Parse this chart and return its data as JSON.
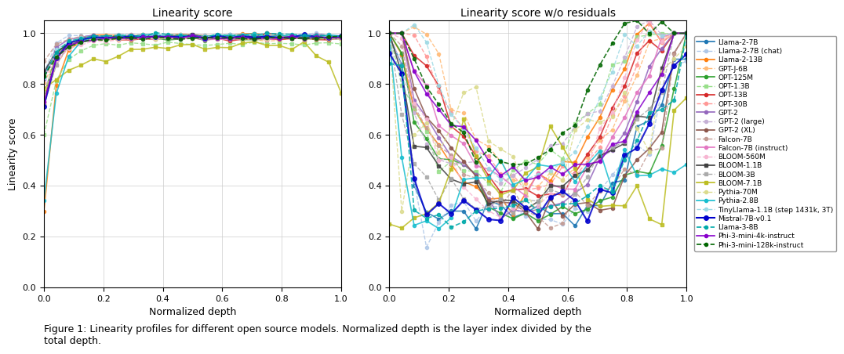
{
  "models": [
    {
      "name": "Llama-2-7B",
      "color": "#1f77b4",
      "linestyle": "-",
      "marker": "o",
      "markersize": 3,
      "linewidth": 1.2
    },
    {
      "name": "Llama-2-7B (chat)",
      "color": "#aec7e8",
      "linestyle": "--",
      "marker": "o",
      "markersize": 3,
      "linewidth": 1.0
    },
    {
      "name": "Llama-2-13B",
      "color": "#ff7f0e",
      "linestyle": "-",
      "marker": "o",
      "markersize": 3,
      "linewidth": 1.2
    },
    {
      "name": "GPT-J-6B",
      "color": "#ffbb78",
      "linestyle": "--",
      "marker": "o",
      "markersize": 3,
      "linewidth": 1.0
    },
    {
      "name": "OPT-125M",
      "color": "#2ca02c",
      "linestyle": "-",
      "marker": "o",
      "markersize": 3,
      "linewidth": 1.2
    },
    {
      "name": "OPT-1.3B",
      "color": "#98df8a",
      "linestyle": "--",
      "marker": "s",
      "markersize": 3,
      "linewidth": 1.0
    },
    {
      "name": "OPT-13B",
      "color": "#d62728",
      "linestyle": "-",
      "marker": "o",
      "markersize": 3,
      "linewidth": 1.2
    },
    {
      "name": "OPT-30B",
      "color": "#ff9896",
      "linestyle": "--",
      "marker": "o",
      "markersize": 3,
      "linewidth": 1.0
    },
    {
      "name": "GPT-2",
      "color": "#9467bd",
      "linestyle": "-",
      "marker": "o",
      "markersize": 3,
      "linewidth": 1.2
    },
    {
      "name": "GPT-2 (large)",
      "color": "#c5b0d5",
      "linestyle": "--",
      "marker": "o",
      "markersize": 3,
      "linewidth": 1.0
    },
    {
      "name": "GPT-2 (XL)",
      "color": "#8c564b",
      "linestyle": "-",
      "marker": "o",
      "markersize": 3,
      "linewidth": 1.2
    },
    {
      "name": "Falcon-7B",
      "color": "#c49c94",
      "linestyle": "--",
      "marker": "o",
      "markersize": 3,
      "linewidth": 1.0
    },
    {
      "name": "Falcon-7B (instruct)",
      "color": "#e377c2",
      "linestyle": "-",
      "marker": "o",
      "markersize": 3,
      "linewidth": 1.2
    },
    {
      "name": "BLOOM-560M",
      "color": "#f7b6d2",
      "linestyle": "--",
      "marker": "o",
      "markersize": 3,
      "linewidth": 1.0
    },
    {
      "name": "BLOOM-1.1B",
      "color": "#404040",
      "linestyle": "-",
      "marker": "s",
      "markersize": 3,
      "linewidth": 1.2
    },
    {
      "name": "BLOOM-3B",
      "color": "#aaaaaa",
      "linestyle": "--",
      "marker": "s",
      "markersize": 3,
      "linewidth": 1.0
    },
    {
      "name": "BLOOM-7.1B",
      "color": "#bcbd22",
      "linestyle": "-",
      "marker": "s",
      "markersize": 3,
      "linewidth": 1.2
    },
    {
      "name": "Pythia-70M",
      "color": "#dbdb8d",
      "linestyle": "--",
      "marker": "o",
      "markersize": 3,
      "linewidth": 1.0
    },
    {
      "name": "Pythia-2.8B",
      "color": "#17becf",
      "linestyle": "-",
      "marker": "o",
      "markersize": 3,
      "linewidth": 1.2
    },
    {
      "name": "TinyLlama-1.1B (step 1431k, 3T)",
      "color": "#9edae5",
      "linestyle": "--",
      "marker": "o",
      "markersize": 3,
      "linewidth": 1.0
    },
    {
      "name": "Mistral-7B-v0.1",
      "color": "#0000cc",
      "linestyle": "-",
      "marker": "o",
      "markersize": 4,
      "linewidth": 1.5
    },
    {
      "name": "Llama-3-8B",
      "color": "#00aaaa",
      "linestyle": "--",
      "marker": "o",
      "markersize": 3,
      "linewidth": 1.2
    },
    {
      "name": "Phi-3-mini-4k-instruct",
      "color": "#8800cc",
      "linestyle": "-",
      "marker": "o",
      "markersize": 3,
      "linewidth": 1.2
    },
    {
      "name": "Phi-3-mini-128k-instruct",
      "color": "#006600",
      "linestyle": "--",
      "marker": "o",
      "markersize": 3,
      "linewidth": 1.2
    }
  ],
  "title_left": "Linearity score",
  "title_right": "Linearity score w/o residuals",
  "xlabel": "Normalized depth",
  "ylabel": "Linearity score",
  "xlim": [
    0.0,
    1.0
  ],
  "ylim": [
    0.0,
    1.05
  ],
  "caption": "Figure 1: Linearity profiles for different open source models. Normalized depth is the layer index divided by the\ntotal depth.",
  "background_color": "#ffffff",
  "grid_color": "#cccccc"
}
